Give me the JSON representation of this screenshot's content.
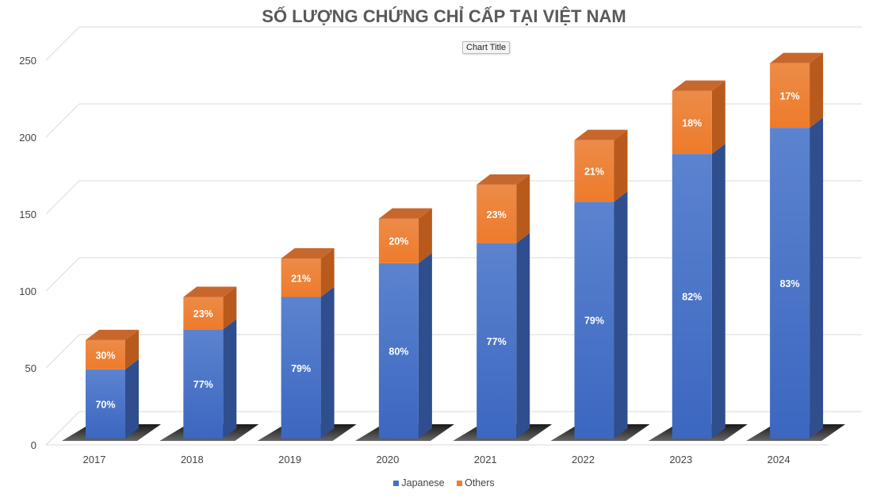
{
  "chart_data": {
    "type": "bar",
    "stacked": true,
    "three_d": true,
    "title": "SỐ LƯỢNG CHỨNG CHỈ CẤP TẠI VIỆT NAM",
    "tooltip": "Chart Title",
    "categories": [
      "2017",
      "2018",
      "2019",
      "2020",
      "2021",
      "2022",
      "2023",
      "2024"
    ],
    "series": [
      {
        "name": "Japanese",
        "color": "#4472C4",
        "values": [
          45,
          71,
          92,
          114,
          127,
          154,
          185,
          202
        ],
        "labels": [
          "70%",
          "77%",
          "79%",
          "80%",
          "77%",
          "79%",
          "82%",
          "83%"
        ]
      },
      {
        "name": "Others",
        "color": "#ED7D31",
        "values": [
          19,
          21,
          25,
          29,
          38,
          40,
          41,
          42
        ],
        "labels": [
          "30%",
          "23%",
          "21%",
          "20%",
          "23%",
          "21%",
          "18%",
          "17%"
        ]
      }
    ],
    "yticks": [
      "0",
      "50",
      "100",
      "150",
      "200",
      "250"
    ],
    "ylim": [
      0,
      250
    ],
    "grid": true,
    "legend": "bottom"
  }
}
